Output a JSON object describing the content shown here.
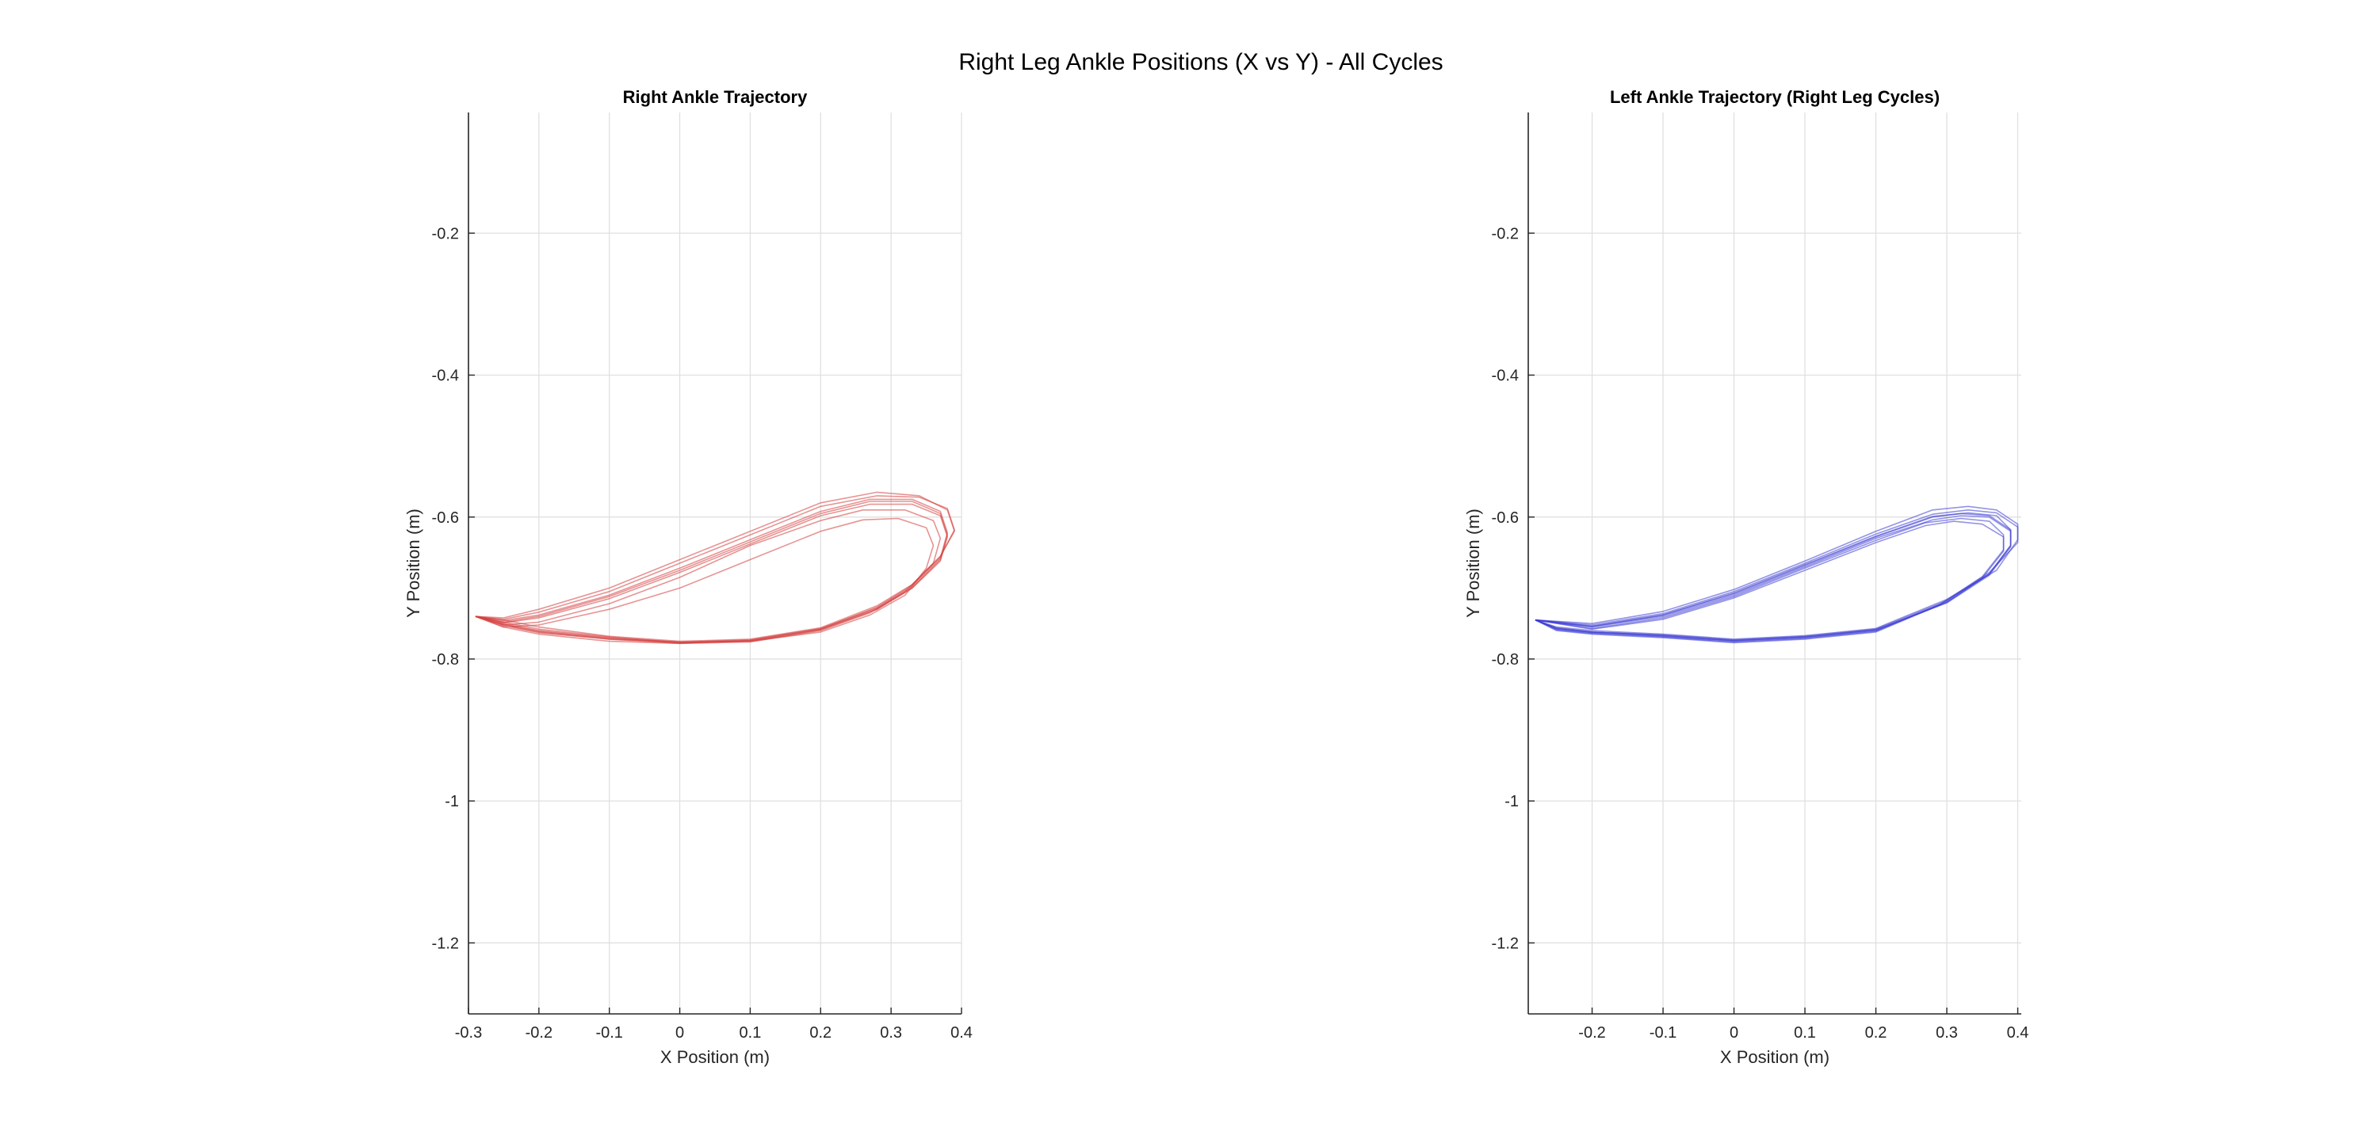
{
  "figure": {
    "suptitle": "Right Leg Ankle Positions (X vs Y) - All Cycles"
  },
  "chart_data": [
    {
      "type": "line",
      "title": "Right Ankle Trajectory",
      "xlabel": "X Position (m)",
      "ylabel": "Y Position (m)",
      "xlim": [
        -0.3,
        0.4
      ],
      "ylim": [
        -1.3,
        -0.03
      ],
      "xticks": [
        -0.3,
        -0.2,
        -0.1,
        0,
        0.1,
        0.2,
        0.3,
        0.4
      ],
      "xtick_labels": [
        "-0.3",
        "-0.2",
        "-0.1",
        "0",
        "0.1",
        "0.2",
        "0.3",
        "0.4"
      ],
      "yticks": [
        -1.2,
        -1.0,
        -0.8,
        -0.6,
        -0.4,
        -0.2
      ],
      "ytick_labels": [
        "-1.2",
        "-1",
        "-0.8",
        "-0.6",
        "-0.4",
        "-0.2"
      ],
      "grid": true,
      "color": "#d43c3c",
      "series": [
        {
          "x": [
            -0.29,
            -0.25,
            -0.2,
            -0.1,
            0.0,
            0.1,
            0.2,
            0.28,
            0.33,
            0.37,
            0.38,
            0.37,
            0.33,
            0.27,
            0.2,
            0.1,
            0.0,
            -0.1,
            -0.2,
            -0.25,
            -0.29
          ],
          "y": [
            -0.74,
            -0.752,
            -0.762,
            -0.772,
            -0.778,
            -0.774,
            -0.758,
            -0.73,
            -0.7,
            -0.66,
            -0.625,
            -0.595,
            -0.578,
            -0.578,
            -0.595,
            -0.635,
            -0.675,
            -0.712,
            -0.74,
            -0.748,
            -0.74
          ]
        },
        {
          "x": [
            -0.29,
            -0.25,
            -0.2,
            -0.1,
            0.0,
            0.1,
            0.2,
            0.28,
            0.33,
            0.37,
            0.39,
            0.38,
            0.34,
            0.28,
            0.2,
            0.1,
            0.0,
            -0.1,
            -0.2,
            -0.25,
            -0.29
          ],
          "y": [
            -0.74,
            -0.745,
            -0.755,
            -0.768,
            -0.775,
            -0.772,
            -0.756,
            -0.725,
            -0.695,
            -0.655,
            -0.62,
            -0.59,
            -0.57,
            -0.565,
            -0.58,
            -0.62,
            -0.66,
            -0.7,
            -0.73,
            -0.742,
            -0.74
          ]
        },
        {
          "x": [
            -0.29,
            -0.25,
            -0.2,
            -0.1,
            0.0,
            0.1,
            0.2,
            0.27,
            0.32,
            0.36,
            0.37,
            0.36,
            0.32,
            0.26,
            0.2,
            0.1,
            0.0,
            -0.1,
            -0.2,
            -0.25,
            -0.29
          ],
          "y": [
            -0.74,
            -0.755,
            -0.765,
            -0.775,
            -0.778,
            -0.776,
            -0.76,
            -0.735,
            -0.705,
            -0.665,
            -0.63,
            -0.605,
            -0.59,
            -0.59,
            -0.605,
            -0.64,
            -0.685,
            -0.722,
            -0.748,
            -0.752,
            -0.74
          ]
        },
        {
          "x": [
            -0.29,
            -0.25,
            -0.2,
            -0.1,
            0.0,
            0.1,
            0.2,
            0.28,
            0.33,
            0.37,
            0.38,
            0.37,
            0.33,
            0.27,
            0.2,
            0.1,
            0.0,
            -0.1,
            -0.2,
            -0.25,
            -0.29
          ],
          "y": [
            -0.74,
            -0.75,
            -0.76,
            -0.77,
            -0.776,
            -0.773,
            -0.757,
            -0.728,
            -0.698,
            -0.658,
            -0.622,
            -0.592,
            -0.575,
            -0.575,
            -0.592,
            -0.632,
            -0.672,
            -0.71,
            -0.738,
            -0.746,
            -0.74
          ]
        },
        {
          "x": [
            -0.29,
            -0.25,
            -0.2,
            -0.1,
            0.0,
            0.1,
            0.2,
            0.27,
            0.32,
            0.35,
            0.36,
            0.35,
            0.31,
            0.26,
            0.2,
            0.1,
            0.0,
            -0.1,
            -0.2,
            -0.25,
            -0.29
          ],
          "y": [
            -0.74,
            -0.753,
            -0.763,
            -0.772,
            -0.776,
            -0.775,
            -0.762,
            -0.738,
            -0.71,
            -0.672,
            -0.64,
            -0.615,
            -0.602,
            -0.604,
            -0.62,
            -0.66,
            -0.7,
            -0.73,
            -0.752,
            -0.755,
            -0.74
          ]
        },
        {
          "x": [
            -0.29,
            -0.25,
            -0.2,
            -0.1,
            0.0,
            0.1,
            0.2,
            0.28,
            0.33,
            0.37,
            0.39,
            0.38,
            0.34,
            0.28,
            0.2,
            0.1,
            0.0,
            -0.1,
            -0.2,
            -0.25,
            -0.29
          ],
          "y": [
            -0.74,
            -0.748,
            -0.758,
            -0.769,
            -0.777,
            -0.774,
            -0.758,
            -0.727,
            -0.696,
            -0.656,
            -0.618,
            -0.588,
            -0.572,
            -0.57,
            -0.585,
            -0.625,
            -0.665,
            -0.705,
            -0.734,
            -0.744,
            -0.74
          ]
        },
        {
          "x": [
            -0.29,
            -0.25,
            -0.2,
            -0.1,
            0.0,
            0.1,
            0.2,
            0.28,
            0.33,
            0.37,
            0.38,
            0.37,
            0.33,
            0.27,
            0.2,
            0.1,
            0.0,
            -0.1,
            -0.2,
            -0.25,
            -0.29
          ],
          "y": [
            -0.74,
            -0.751,
            -0.761,
            -0.771,
            -0.777,
            -0.775,
            -0.759,
            -0.73,
            -0.7,
            -0.662,
            -0.628,
            -0.598,
            -0.582,
            -0.582,
            -0.598,
            -0.638,
            -0.678,
            -0.715,
            -0.742,
            -0.749,
            -0.74
          ]
        }
      ]
    },
    {
      "type": "line",
      "title": "Left Ankle Trajectory (Right Leg Cycles)",
      "xlabel": "X Position (m)",
      "ylabel": "Y Position (m)",
      "xlim": [
        -0.29,
        0.405
      ],
      "ylim": [
        -1.3,
        -0.03
      ],
      "xticks": [
        -0.2,
        -0.1,
        0,
        0.1,
        0.2,
        0.3,
        0.4
      ],
      "xtick_labels": [
        "-0.2",
        "-0.1",
        "0",
        "0.1",
        "0.2",
        "0.3",
        "0.4"
      ],
      "yticks": [
        -1.2,
        -1.0,
        -0.8,
        -0.6,
        -0.4,
        -0.2
      ],
      "ytick_labels": [
        "-1.2",
        "-1",
        "-0.8",
        "-0.6",
        "-0.4",
        "-0.2"
      ],
      "grid": true,
      "color": "#3c3cd4",
      "series": [
        {
          "x": [
            -0.28,
            -0.25,
            -0.2,
            -0.1,
            0.0,
            0.1,
            0.2,
            0.3,
            0.36,
            0.39,
            0.39,
            0.36,
            0.32,
            0.28,
            0.2,
            0.1,
            0.0,
            -0.1,
            -0.2,
            -0.28
          ],
          "y": [
            -0.745,
            -0.758,
            -0.763,
            -0.768,
            -0.775,
            -0.77,
            -0.76,
            -0.72,
            -0.68,
            -0.64,
            -0.62,
            -0.6,
            -0.598,
            -0.604,
            -0.63,
            -0.67,
            -0.71,
            -0.74,
            -0.755,
            -0.745
          ]
        },
        {
          "x": [
            -0.28,
            -0.25,
            -0.2,
            -0.1,
            0.0,
            0.1,
            0.2,
            0.3,
            0.36,
            0.4,
            0.4,
            0.37,
            0.33,
            0.28,
            0.2,
            0.1,
            0.0,
            -0.1,
            -0.2,
            -0.28
          ],
          "y": [
            -0.745,
            -0.756,
            -0.762,
            -0.766,
            -0.773,
            -0.768,
            -0.758,
            -0.718,
            -0.678,
            -0.636,
            -0.614,
            -0.594,
            -0.59,
            -0.596,
            -0.624,
            -0.665,
            -0.705,
            -0.736,
            -0.752,
            -0.745
          ]
        },
        {
          "x": [
            -0.28,
            -0.25,
            -0.2,
            -0.1,
            0.0,
            0.1,
            0.2,
            0.29,
            0.35,
            0.38,
            0.38,
            0.35,
            0.31,
            0.27,
            0.2,
            0.1,
            0.0,
            -0.1,
            -0.2,
            -0.28
          ],
          "y": [
            -0.745,
            -0.76,
            -0.765,
            -0.77,
            -0.777,
            -0.772,
            -0.762,
            -0.724,
            -0.686,
            -0.648,
            -0.628,
            -0.61,
            -0.606,
            -0.612,
            -0.636,
            -0.675,
            -0.714,
            -0.744,
            -0.758,
            -0.745
          ]
        },
        {
          "x": [
            -0.28,
            -0.25,
            -0.2,
            -0.1,
            0.0,
            0.1,
            0.2,
            0.3,
            0.36,
            0.39,
            0.39,
            0.36,
            0.32,
            0.28,
            0.2,
            0.1,
            0.0,
            -0.1,
            -0.2,
            -0.28
          ],
          "y": [
            -0.745,
            -0.757,
            -0.762,
            -0.767,
            -0.774,
            -0.769,
            -0.759,
            -0.721,
            -0.682,
            -0.642,
            -0.618,
            -0.598,
            -0.595,
            -0.6,
            -0.628,
            -0.668,
            -0.708,
            -0.738,
            -0.754,
            -0.745
          ]
        },
        {
          "x": [
            -0.28,
            -0.25,
            -0.2,
            -0.1,
            0.0,
            0.1,
            0.2,
            0.3,
            0.37,
            0.4,
            0.4,
            0.37,
            0.33,
            0.28,
            0.2,
            0.1,
            0.0,
            -0.1,
            -0.2,
            -0.28
          ],
          "y": [
            -0.745,
            -0.755,
            -0.76,
            -0.765,
            -0.772,
            -0.767,
            -0.757,
            -0.716,
            -0.675,
            -0.632,
            -0.61,
            -0.59,
            -0.585,
            -0.59,
            -0.62,
            -0.662,
            -0.702,
            -0.733,
            -0.75,
            -0.745
          ]
        },
        {
          "x": [
            -0.28,
            -0.25,
            -0.2,
            -0.1,
            0.0,
            0.1,
            0.2,
            0.29,
            0.35,
            0.38,
            0.38,
            0.36,
            0.32,
            0.27,
            0.2,
            0.1,
            0.0,
            -0.1,
            -0.2,
            -0.28
          ],
          "y": [
            -0.745,
            -0.759,
            -0.764,
            -0.769,
            -0.776,
            -0.771,
            -0.761,
            -0.723,
            -0.684,
            -0.646,
            -0.625,
            -0.606,
            -0.602,
            -0.608,
            -0.633,
            -0.672,
            -0.712,
            -0.742,
            -0.757,
            -0.745
          ]
        },
        {
          "x": [
            -0.28,
            -0.25,
            -0.2,
            -0.1,
            0.0,
            0.1,
            0.2,
            0.3,
            0.36,
            0.39,
            0.39,
            0.37,
            0.33,
            0.28,
            0.2,
            0.1,
            0.0,
            -0.1,
            -0.2,
            -0.28
          ],
          "y": [
            -0.745,
            -0.757,
            -0.762,
            -0.767,
            -0.774,
            -0.769,
            -0.759,
            -0.72,
            -0.68,
            -0.64,
            -0.618,
            -0.598,
            -0.594,
            -0.599,
            -0.627,
            -0.667,
            -0.707,
            -0.738,
            -0.754,
            -0.745
          ]
        }
      ]
    }
  ]
}
